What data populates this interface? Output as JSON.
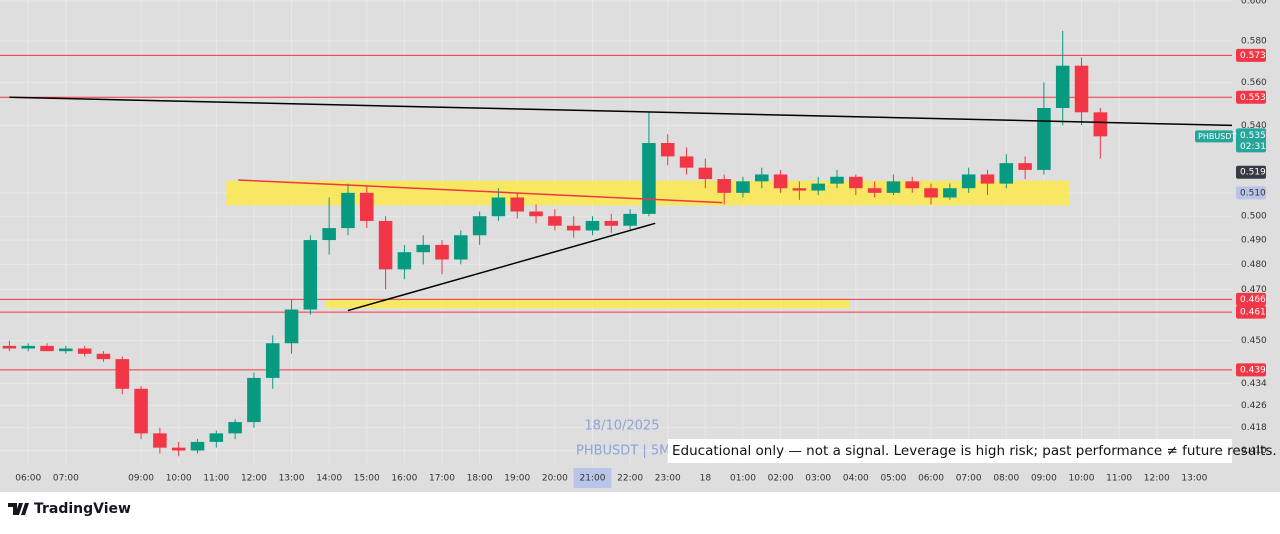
{
  "chart_data": {
    "type": "candlestick",
    "symbol_tag": "PHBUSDT",
    "last_price": {
      "value": 0.535,
      "label": "0.535"
    },
    "countdown": "02:31",
    "date_watermark": "18/10/2025",
    "symbol_watermark": "PHBUSDT | 5M",
    "disclaimer": "Educational only — not a signal. Leverage is high risk; past performance ≠ future results.",
    "brand": "TradingView",
    "up_color": "#089981",
    "down_color": "#f23645",
    "log_scale": true,
    "grid": true,
    "ylim": [
      0.405,
      0.6005
    ],
    "xlim": [
      "05:15",
      "18 14:00"
    ],
    "yticks": [
      {
        "value": 0.6,
        "label": "0.600"
      },
      {
        "value": 0.58,
        "label": "0.580"
      },
      {
        "value": 0.56,
        "label": "0.560"
      },
      {
        "value": 0.54,
        "label": "0.540"
      },
      {
        "value": 0.51,
        "label": "0.510"
      },
      {
        "value": 0.5,
        "label": "0.500"
      },
      {
        "value": 0.49,
        "label": "0.490"
      },
      {
        "value": 0.48,
        "label": "0.480"
      },
      {
        "value": 0.47,
        "label": "0.470"
      },
      {
        "value": 0.45,
        "label": "0.450"
      },
      {
        "value": 0.434,
        "label": "0.434"
      },
      {
        "value": 0.426,
        "label": "0.426"
      },
      {
        "value": 0.418,
        "label": "0.418"
      },
      {
        "value": 0.41,
        "label": "0.410"
      }
    ],
    "xticks": [
      "06:00",
      "07:00",
      "09:00",
      "10:00",
      "11:00",
      "12:00",
      "13:00",
      "14:00",
      "15:00",
      "16:00",
      "17:00",
      "18:00",
      "19:00",
      "20:00",
      "21:00",
      "22:00",
      "23:00",
      "18",
      "01:00",
      "02:00",
      "03:00",
      "04:00",
      "05:00",
      "06:00",
      "07:00",
      "08:00",
      "09:00",
      "10:00",
      "11:00",
      "12:00",
      "13:00"
    ],
    "crosshair_x": "21:00",
    "price_tags": [
      {
        "value": 0.573,
        "label": "0.573",
        "color": "#f23645",
        "line": true
      },
      {
        "value": 0.553,
        "label": "0.553",
        "color": "#f23645",
        "line": true
      },
      {
        "value": 0.519,
        "label": "0.519",
        "color": "#363a45",
        "line": false
      },
      {
        "value": 0.51,
        "label": "0.510",
        "color": "#b8c5e8",
        "line": false
      },
      {
        "value": 0.466,
        "label": "0.466",
        "color": "#f23645",
        "line": true
      },
      {
        "value": 0.461,
        "label": "0.461",
        "color": "#f23645",
        "line": true
      },
      {
        "value": 0.439,
        "label": "0.439",
        "color": "#f23645",
        "line": true
      }
    ],
    "zones": [
      {
        "from": [
          "11:16",
          0.5153
        ],
        "to": [
          "18 09:40",
          0.5046
        ],
        "color": "#fbe94e"
      },
      {
        "from": [
          "13:55",
          0.466
        ],
        "to": [
          "18 03:50",
          0.4625
        ],
        "color": "#fbe94e"
      }
    ],
    "trendlines": [
      {
        "from": [
          "05:30",
          0.553
        ],
        "to": [
          "18 14:00",
          0.54
        ],
        "color": "#000000"
      },
      {
        "from": [
          "14:30",
          0.4616
        ],
        "to": [
          "22:40",
          0.497
        ],
        "color": "#000000"
      },
      {
        "from": [
          "11:35",
          0.5156
        ],
        "to": [
          "18 00:27",
          0.5058
        ],
        "color": "#f23645"
      }
    ],
    "x": [
      "05:30",
      "06:00",
      "06:30",
      "07:00",
      "07:30",
      "08:00",
      "08:30",
      "09:00",
      "09:30",
      "10:00",
      "10:30",
      "11:00",
      "11:30",
      "12:00",
      "12:30",
      "13:00",
      "13:30",
      "14:00",
      "14:30",
      "15:00",
      "15:30",
      "16:00",
      "16:30",
      "17:00",
      "17:30",
      "18:00",
      "18:30",
      "19:00",
      "19:30",
      "20:00",
      "20:30",
      "21:00",
      "21:30",
      "22:00",
      "22:30",
      "23:00",
      "23:30",
      "18 00:00",
      "18 00:30",
      "18 01:00",
      "18 01:30",
      "18 02:00",
      "18 02:30",
      "18 03:00",
      "18 03:30",
      "18 04:00",
      "18 04:30",
      "18 05:00",
      "18 05:30",
      "18 06:00",
      "18 06:30",
      "18 07:00",
      "18 07:30",
      "18 08:00",
      "18 08:30",
      "18 09:00",
      "18 09:30",
      "18 10:00",
      "18 10:30"
    ],
    "ohlc": [
      [
        0.448,
        0.45,
        0.446,
        0.447
      ],
      [
        0.447,
        0.449,
        0.446,
        0.448
      ],
      [
        0.448,
        0.449,
        0.446,
        0.446
      ],
      [
        0.446,
        0.448,
        0.445,
        0.447
      ],
      [
        0.447,
        0.448,
        0.444,
        0.445
      ],
      [
        0.445,
        0.446,
        0.442,
        0.443
      ],
      [
        0.443,
        0.444,
        0.43,
        0.432
      ],
      [
        0.432,
        0.433,
        0.414,
        0.416
      ],
      [
        0.416,
        0.418,
        0.409,
        0.411
      ],
      [
        0.411,
        0.413,
        0.408,
        0.41
      ],
      [
        0.41,
        0.414,
        0.409,
        0.413
      ],
      [
        0.413,
        0.417,
        0.411,
        0.416
      ],
      [
        0.416,
        0.421,
        0.414,
        0.42
      ],
      [
        0.42,
        0.438,
        0.418,
        0.436
      ],
      [
        0.436,
        0.452,
        0.432,
        0.449
      ],
      [
        0.449,
        0.466,
        0.445,
        0.462
      ],
      [
        0.462,
        0.492,
        0.46,
        0.49
      ],
      [
        0.49,
        0.508,
        0.484,
        0.495
      ],
      [
        0.495,
        0.514,
        0.492,
        0.51
      ],
      [
        0.51,
        0.513,
        0.495,
        0.498
      ],
      [
        0.498,
        0.5,
        0.47,
        0.478
      ],
      [
        0.478,
        0.488,
        0.474,
        0.485
      ],
      [
        0.485,
        0.492,
        0.48,
        0.488
      ],
      [
        0.488,
        0.49,
        0.476,
        0.482
      ],
      [
        0.482,
        0.494,
        0.48,
        0.492
      ],
      [
        0.492,
        0.502,
        0.488,
        0.5
      ],
      [
        0.5,
        0.512,
        0.498,
        0.508
      ],
      [
        0.508,
        0.51,
        0.499,
        0.502
      ],
      [
        0.502,
        0.505,
        0.497,
        0.5
      ],
      [
        0.5,
        0.503,
        0.494,
        0.496
      ],
      [
        0.496,
        0.5,
        0.491,
        0.494
      ],
      [
        0.494,
        0.5,
        0.492,
        0.498
      ],
      [
        0.498,
        0.501,
        0.493,
        0.496
      ],
      [
        0.496,
        0.503,
        0.494,
        0.501
      ],
      [
        0.501,
        0.546,
        0.5,
        0.532
      ],
      [
        0.532,
        0.536,
        0.522,
        0.526
      ],
      [
        0.526,
        0.53,
        0.518,
        0.521
      ],
      [
        0.521,
        0.525,
        0.512,
        0.516
      ],
      [
        0.516,
        0.518,
        0.505,
        0.51
      ],
      [
        0.51,
        0.517,
        0.508,
        0.515
      ],
      [
        0.515,
        0.521,
        0.512,
        0.518
      ],
      [
        0.518,
        0.52,
        0.51,
        0.512
      ],
      [
        0.512,
        0.515,
        0.507,
        0.511
      ],
      [
        0.511,
        0.517,
        0.509,
        0.514
      ],
      [
        0.514,
        0.52,
        0.512,
        0.517
      ],
      [
        0.517,
        0.518,
        0.509,
        0.512
      ],
      [
        0.512,
        0.515,
        0.508,
        0.51
      ],
      [
        0.51,
        0.518,
        0.509,
        0.515
      ],
      [
        0.515,
        0.517,
        0.51,
        0.512
      ],
      [
        0.512,
        0.514,
        0.505,
        0.508
      ],
      [
        0.508,
        0.514,
        0.507,
        0.512
      ],
      [
        0.512,
        0.521,
        0.51,
        0.518
      ],
      [
        0.518,
        0.52,
        0.509,
        0.514
      ],
      [
        0.514,
        0.527,
        0.512,
        0.523
      ],
      [
        0.523,
        0.526,
        0.516,
        0.52
      ],
      [
        0.52,
        0.56,
        0.518,
        0.548
      ],
      [
        0.548,
        0.585,
        0.54,
        0.568
      ],
      [
        0.568,
        0.572,
        0.54,
        0.546
      ],
      [
        0.546,
        0.548,
        0.525,
        0.535
      ]
    ]
  }
}
